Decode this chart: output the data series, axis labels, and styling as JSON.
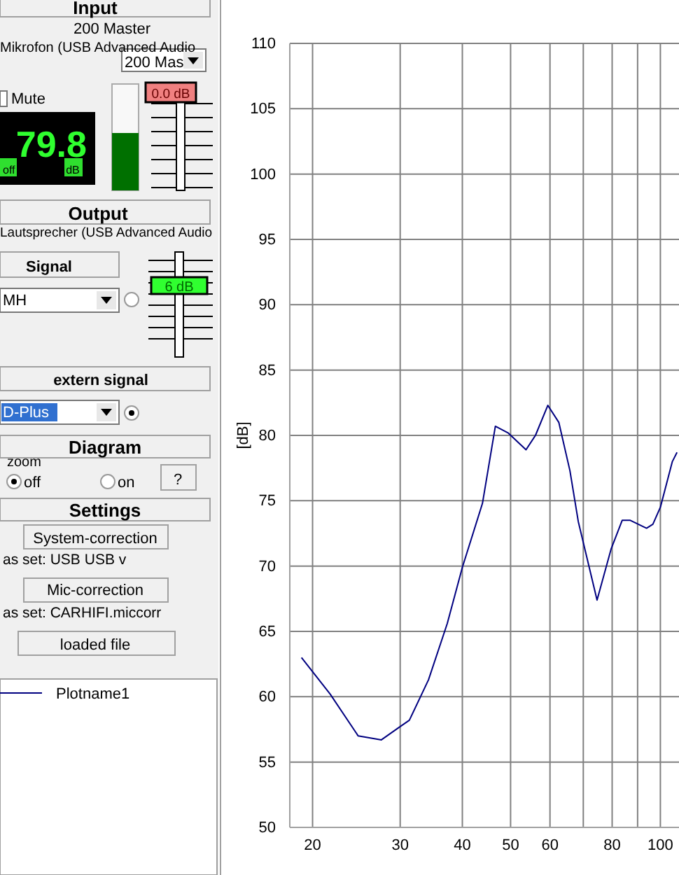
{
  "chart_data": [
    {
      "type": "other",
      "annotations": [
        "Input",
        "200 Master",
        "Mikrofon (USB Advanced Audio",
        "200 Mas",
        "Mute",
        "79.8",
        "off",
        "dB",
        "0.0 dB",
        "Output",
        "Lautsprecher (USB Advanced Audio",
        "Signal",
        "MH",
        "6 dB",
        "extern signal",
        "D-Plus",
        "Diagram",
        "zoom",
        "off",
        "on",
        "?",
        "Settings",
        "System-correction",
        "as set: USB USB v",
        "Mic-correction",
        "as set: CARHIFI.miccorr",
        "loaded file"
      ]
    },
    {
      "type": "line",
      "ylabel": "[dB]",
      "log": "x",
      "xlim": [
        18,
        109
      ],
      "ylim": [
        50,
        110
      ],
      "xticks": [
        20,
        30,
        40,
        50,
        60,
        {
          "value": 70,
          "label": null
        },
        80,
        {
          "value": 90,
          "label": null
        },
        100
      ],
      "yticks": [
        50,
        55,
        60,
        65,
        70,
        75,
        80,
        85,
        90,
        95,
        100,
        105,
        110
      ],
      "grid": true,
      "legend": "left",
      "series": [
        {
          "name": "Plotname1",
          "color": "#000080",
          "x": [
            19,
            21.7,
            24.7,
            27.5,
            29.7,
            31.3,
            34.2,
            37.3,
            40,
            43.9,
            46.6,
            49.4,
            53.7,
            56.1,
            59.4,
            62.5,
            65.8,
            68.4,
            74.6,
            79.6,
            83.8,
            87,
            93.8,
            96.6,
            100,
            105.7,
            108
          ],
          "values": [
            63,
            60.2,
            57,
            56.7,
            57.6,
            58.2,
            61.3,
            65.6,
            69.9,
            74.8,
            80.7,
            80.2,
            78.9,
            80,
            82.3,
            81,
            77.3,
            73.4,
            67.4,
            71.3,
            73.5,
            73.5,
            72.9,
            73.2,
            74.5,
            78,
            78.7
          ]
        }
      ]
    }
  ]
}
